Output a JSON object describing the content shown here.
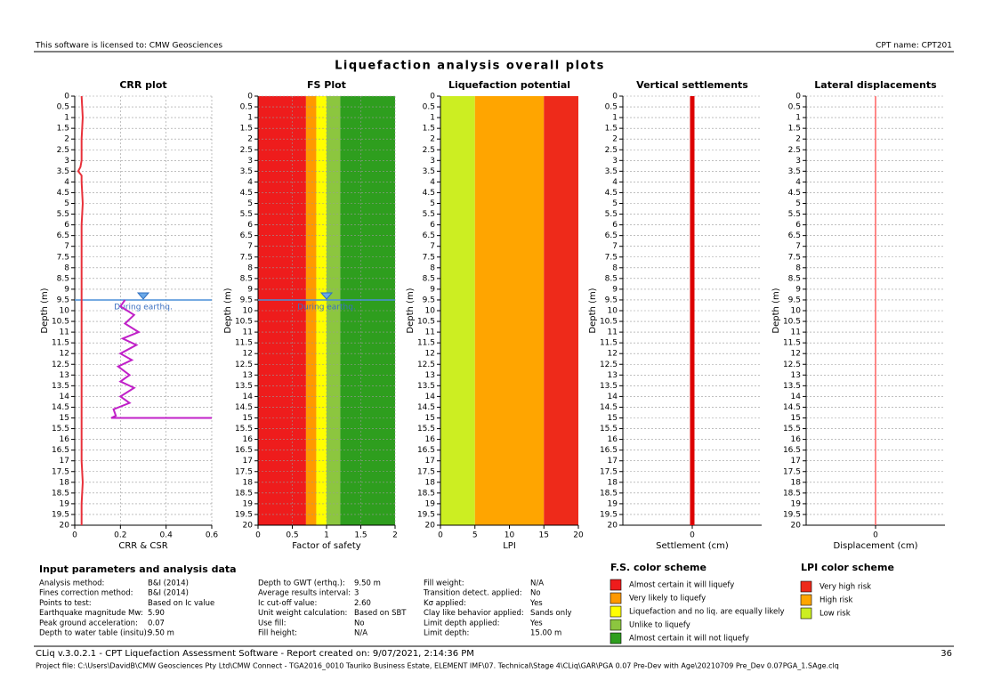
{
  "header": {
    "license": "This software is licensed to: CMW Geosciences",
    "cpt_name": "CPT name: CPT201"
  },
  "title": "Liquefaction analysis overall plots",
  "chart_data": [
    {
      "type": "line",
      "title": "CRR plot",
      "xlabel": "CRR & CSR",
      "ylabel": "Depth (m)",
      "xlim": [
        0,
        0.6
      ],
      "xticks": [
        0,
        0.2,
        0.4,
        0.6
      ],
      "ylim": [
        0,
        20
      ],
      "yticks": [
        0,
        0.5,
        1,
        1.5,
        2,
        2.5,
        3,
        3.5,
        4,
        4.5,
        5,
        5.5,
        6,
        6.5,
        7,
        7.5,
        8,
        8.5,
        9,
        9.5,
        10,
        10.5,
        11,
        11.5,
        12,
        12.5,
        13,
        13.5,
        14,
        14.5,
        15,
        15.5,
        16,
        16.5,
        17,
        17.5,
        18,
        18.5,
        19,
        19.5,
        20
      ],
      "grid": true,
      "gwt_depth": 9.5,
      "gwt_label": "During earthq.",
      "series": [
        {
          "color": "#e8313a",
          "line_width": 2,
          "depth": [
            0,
            1,
            2,
            3,
            3.3,
            3.5,
            3.7,
            4,
            5,
            6,
            7,
            8,
            9,
            9.5,
            10,
            11,
            12,
            13,
            14,
            15,
            16,
            17,
            18,
            19,
            20
          ],
          "values": [
            0.03,
            0.035,
            0.03,
            0.03,
            0.025,
            0.015,
            0.03,
            0.03,
            0.035,
            0.03,
            0.03,
            0.03,
            0.03,
            0.03,
            0.03,
            0.03,
            0.03,
            0.03,
            0.03,
            0.03,
            0.03,
            0.03,
            0.035,
            0.03,
            0.03
          ]
        },
        {
          "color": "#c020c8",
          "line_width": 2,
          "depth": [
            9.5,
            9.8,
            10.2,
            10.6,
            11,
            11.3,
            11.6,
            12,
            12.3,
            12.6,
            13,
            13.3,
            13.6,
            14,
            14.3,
            14.6,
            14.9,
            15,
            15
          ],
          "values": [
            0.22,
            0.2,
            0.26,
            0.22,
            0.28,
            0.21,
            0.27,
            0.2,
            0.25,
            0.19,
            0.24,
            0.2,
            0.26,
            0.2,
            0.24,
            0.17,
            0.18,
            0.16,
            0.6
          ]
        }
      ]
    },
    {
      "type": "line",
      "title": "FS Plot",
      "xlabel": "Factor of safety",
      "ylabel": "Depth (m)",
      "xlim": [
        0,
        2
      ],
      "xticks": [
        0,
        0.5,
        1,
        1.5,
        2
      ],
      "ylim": [
        0,
        20
      ],
      "yticks": [
        0,
        0.5,
        1,
        1.5,
        2,
        2.5,
        3,
        3.5,
        4,
        4.5,
        5,
        5.5,
        6,
        6.5,
        7,
        7.5,
        8,
        8.5,
        9,
        9.5,
        10,
        10.5,
        11,
        11.5,
        12,
        12.5,
        13,
        13.5,
        14,
        14.5,
        15,
        15.5,
        16,
        16.5,
        17,
        17.5,
        18,
        18.5,
        19,
        19.5,
        20
      ],
      "grid": true,
      "gwt_depth": 9.5,
      "gwt_label": "During earthq.",
      "bands": [
        {
          "from": 0,
          "to": 0.7,
          "color": "#ee1c1c"
        },
        {
          "from": 0.7,
          "to": 0.85,
          "color": "#ff9900"
        },
        {
          "from": 0.85,
          "to": 1,
          "color": "#ffff00"
        },
        {
          "from": 1,
          "to": 1.2,
          "color": "#8cc63f"
        },
        {
          "from": 1.2,
          "to": 2,
          "color": "#2e9e1e"
        }
      ],
      "series": []
    },
    {
      "type": "line",
      "title": "Liquefaction potential",
      "xlabel": "LPI",
      "ylabel": "Depth (m)",
      "xlim": [
        0,
        20
      ],
      "xticks": [
        0,
        5,
        10,
        15,
        20
      ],
      "ylim": [
        0,
        20
      ],
      "yticks": [
        0,
        0.5,
        1,
        1.5,
        2,
        2.5,
        3,
        3.5,
        4,
        4.5,
        5,
        5.5,
        6,
        6.5,
        7,
        7.5,
        8,
        8.5,
        9,
        9.5,
        10,
        10.5,
        11,
        11.5,
        12,
        12.5,
        13,
        13.5,
        14,
        14.5,
        15,
        15.5,
        16,
        16.5,
        17,
        17.5,
        18,
        18.5,
        19,
        19.5,
        20
      ],
      "grid": false,
      "bands": [
        {
          "from": 0,
          "to": 5,
          "color": "#ccee22"
        },
        {
          "from": 5,
          "to": 15,
          "color": "#ffa500"
        },
        {
          "from": 15,
          "to": 20,
          "color": "#ee2a1a"
        }
      ],
      "series": []
    },
    {
      "type": "line",
      "title": "Vertical settlements",
      "xlabel": "Settlement (cm)",
      "ylabel": "Depth (m)",
      "xlim": [
        -1,
        1
      ],
      "xticks": [
        0
      ],
      "ylim": [
        0,
        20
      ],
      "yticks": [
        0,
        0.5,
        1,
        1.5,
        2,
        2.5,
        3,
        3.5,
        4,
        4.5,
        5,
        5.5,
        6,
        6.5,
        7,
        7.5,
        8,
        8.5,
        9,
        9.5,
        10,
        10.5,
        11,
        11.5,
        12,
        12.5,
        13,
        13.5,
        14,
        14.5,
        15,
        15.5,
        16,
        16.5,
        17,
        17.5,
        18,
        18.5,
        19,
        19.5,
        20
      ],
      "grid": true,
      "series": [
        {
          "color": "#dd0000",
          "line_width": 5,
          "depth": [
            0,
            20
          ],
          "values": [
            0,
            0
          ]
        }
      ]
    },
    {
      "type": "line",
      "title": "Lateral displacements",
      "xlabel": "Displacement (cm)",
      "ylabel": "Depth (m)",
      "xlim": [
        -1,
        1
      ],
      "xticks": [
        0
      ],
      "ylim": [
        0,
        20
      ],
      "yticks": [
        0,
        0.5,
        1,
        1.5,
        2,
        2.5,
        3,
        3.5,
        4,
        4.5,
        5,
        5.5,
        6,
        6.5,
        7,
        7.5,
        8,
        8.5,
        9,
        9.5,
        10,
        10.5,
        11,
        11.5,
        12,
        12.5,
        13,
        13.5,
        14,
        14.5,
        15,
        15.5,
        16,
        16.5,
        17,
        17.5,
        18,
        18.5,
        19,
        19.5,
        20
      ],
      "grid": true,
      "series": [
        {
          "color": "#ff6060",
          "line_width": 1.5,
          "depth": [
            0,
            20
          ],
          "values": [
            0,
            0
          ]
        }
      ]
    }
  ],
  "parameters": {
    "title": "Input parameters and analysis data",
    "columns": [
      [
        [
          "Analysis method:",
          "B&I (2014)"
        ],
        [
          "Fines correction method:",
          "B&I (2014)"
        ],
        [
          "Points to test:",
          "Based on Ic value"
        ],
        [
          "Earthquake magnitude Mw:",
          "5.90"
        ],
        [
          "Peak ground acceleration:",
          "0.07"
        ],
        [
          "Depth to water table (insitu):",
          "9.50 m"
        ]
      ],
      [
        [
          "Depth to GWT (erthq.):",
          "9.50 m"
        ],
        [
          "Average results interval:",
          "3"
        ],
        [
          "Ic cut-off value:",
          "2.60"
        ],
        [
          "Unit weight calculation:",
          "Based on SBT"
        ],
        [
          "Use fill:",
          "No"
        ],
        [
          "Fill height:",
          "N/A"
        ]
      ],
      [
        [
          "Fill weight:",
          "N/A"
        ],
        [
          "Transition detect. applied:",
          "No"
        ],
        [
          "Kσ applied:",
          "Yes"
        ],
        [
          "Clay like behavior applied:",
          "Sands only"
        ],
        [
          "Limit depth applied:",
          "Yes"
        ],
        [
          "Limit depth:",
          "15.00 m"
        ]
      ]
    ]
  },
  "fs_scheme": {
    "title": "F.S. color scheme",
    "items": [
      {
        "label": "Almost certain it will liquefy",
        "color": "#ee1c1c"
      },
      {
        "label": "Very likely to liquefy",
        "color": "#ff9900"
      },
      {
        "label": "Liquefaction and no liq. are equally likely",
        "color": "#ffff00"
      },
      {
        "label": "Unlike to liquefy",
        "color": "#8cc63f"
      },
      {
        "label": "Almost certain it will not liquefy",
        "color": "#2e9e1e"
      }
    ]
  },
  "lpi_scheme": {
    "title": "LPI color scheme",
    "items": [
      {
        "label": "Very high risk",
        "color": "#ee2a1a"
      },
      {
        "label": "High risk",
        "color": "#ffa500"
      },
      {
        "label": "Low risk",
        "color": "#ccee22"
      }
    ]
  },
  "footer": {
    "software": "CLiq v.3.0.2.1 - CPT Liquefaction Assessment Software - Report created on: 9/07/2021, 2:14:36 PM",
    "page": "36",
    "project": "Project file: C:\\Users\\DavidB\\CMW Geosciences Pty Ltd\\CMW Connect - TGA2016_0010 Tauriko Business Estate, ELEMENT IMF\\07. Technical\\Stage 4\\CLiq\\GAR\\PGA 0.07 Pre-Dev with Age\\20210709 Pre_Dev 0.07PGA_1.SAge.clq"
  }
}
